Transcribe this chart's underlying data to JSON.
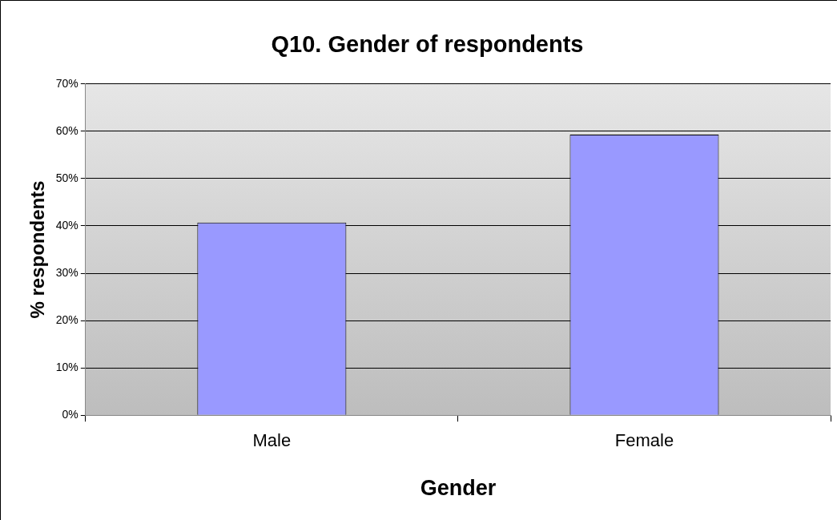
{
  "chart_data": {
    "type": "bar",
    "title": "Q10. Gender of respondents",
    "xlabel": "Gender",
    "ylabel": "% respondents",
    "categories": [
      "Male",
      "Female"
    ],
    "values": [
      40.7,
      59.3
    ],
    "color": "#9999ff",
    "ylim": [
      0,
      70
    ],
    "yticks": [
      {
        "value": 0,
        "label": "0%"
      },
      {
        "value": 10,
        "label": "10%"
      },
      {
        "value": 20,
        "label": "20%"
      },
      {
        "value": 30,
        "label": "30%"
      },
      {
        "value": 40,
        "label": "40%"
      },
      {
        "value": 50,
        "label": "50%"
      },
      {
        "value": 60,
        "label": "60%"
      },
      {
        "value": 70,
        "label": "70%"
      }
    ],
    "grid": "y",
    "legend": false
  }
}
